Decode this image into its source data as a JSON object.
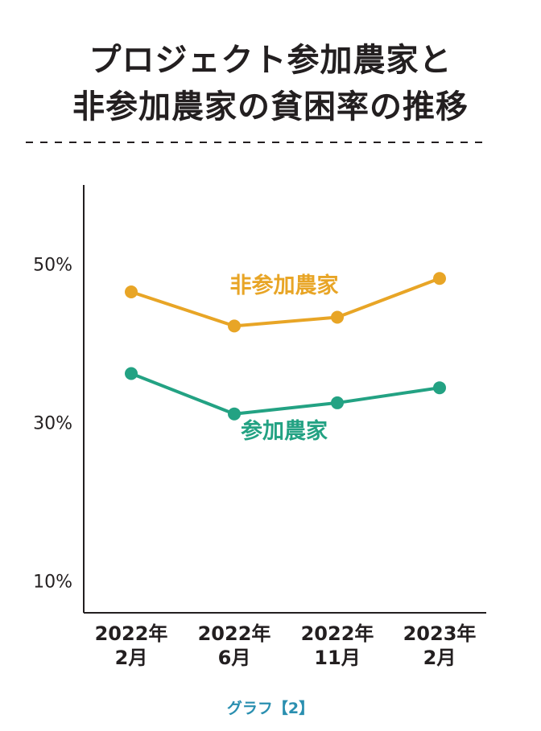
{
  "chart_data": {
    "type": "line",
    "title_lines": [
      "プロジェクト参加農家と",
      "非参加農家の貧困率の推移"
    ],
    "categories": [
      [
        "2022年",
        "2月"
      ],
      [
        "2022年",
        "6月"
      ],
      [
        "2022年",
        "11月"
      ],
      [
        "2023年",
        "2月"
      ]
    ],
    "y_ticks": [
      {
        "value": 50,
        "label": "50%"
      },
      {
        "value": 30,
        "label": "30%"
      },
      {
        "value": 10,
        "label": "10%"
      }
    ],
    "ylim": [
      6,
      60
    ],
    "grid": false,
    "series": [
      {
        "name": "非参加農家",
        "values": [
          46.5,
          42.2,
          43.3,
          48.2
        ],
        "color": "#e8a526"
      },
      {
        "name": "参加農家",
        "values": [
          36.2,
          31.1,
          32.5,
          34.4
        ],
        "color": "#23a283"
      }
    ],
    "caption": "グラフ【2】"
  },
  "colors": {
    "axis": "#231f20",
    "divider": "#231f20",
    "caption": "#2a8fb0"
  }
}
